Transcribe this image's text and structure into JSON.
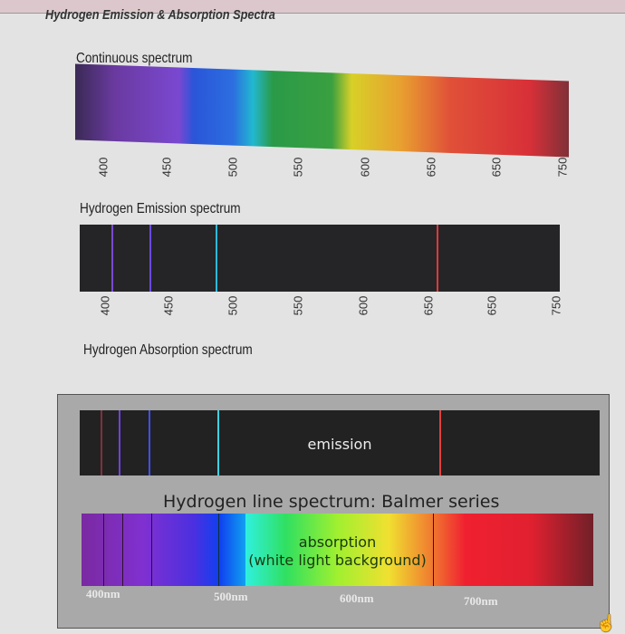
{
  "title": "Hydrogen Emission & Absorption Spectra",
  "continuous": {
    "label": "Continuous spectrum",
    "ticks": [
      "400",
      "450",
      "500",
      "550",
      "600",
      "650",
      "650",
      "750"
    ]
  },
  "emission": {
    "label": "Hydrogen Emission spectrum",
    "ticks": [
      "400",
      "450",
      "500",
      "550",
      "600",
      "650",
      "650",
      "750"
    ],
    "lines": [
      {
        "nm": 410,
        "color": "#7a4ad0"
      },
      {
        "nm": 434,
        "color": "#6a4ae0"
      },
      {
        "nm": 486,
        "color": "#30b8d8"
      },
      {
        "nm": 656,
        "color": "#e03838"
      }
    ]
  },
  "absorption": {
    "label": "Hydrogen Absorption spectrum"
  },
  "balmer": {
    "emission_label": "emission",
    "title": "Hydrogen line spectrum: Balmer series",
    "absorption_label": "absorption",
    "absorption_sub": "(white light background)",
    "axis": [
      "400nm",
      "500nm",
      "600nm",
      "700nm"
    ]
  }
}
